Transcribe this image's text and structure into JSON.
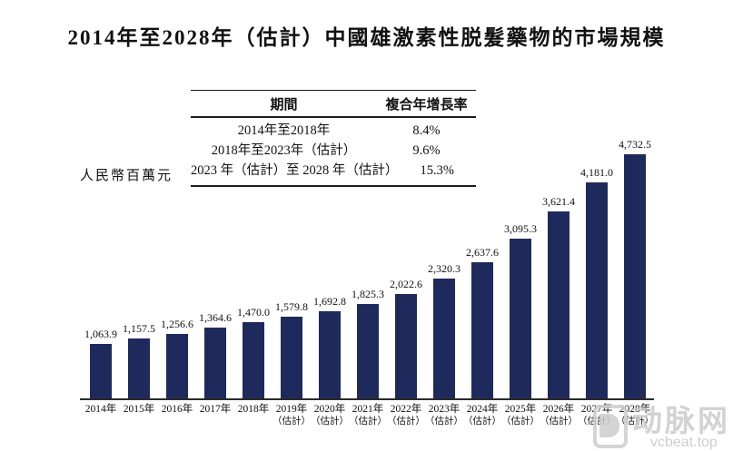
{
  "title": "2014年至2028年（估計）中國雄激素性脱髮藥物的市場規模",
  "unit_label": "人民幣百萬元",
  "cagr_table": {
    "headers": [
      "期間",
      "複合年增長率"
    ],
    "rows": [
      {
        "period": "2014年至2018年",
        "cagr": "8.4%"
      },
      {
        "period": "2018年至2023年（估計）",
        "cagr": "9.6%"
      },
      {
        "period": "2023 年（估計）至 2028 年（估計）",
        "cagr": "15.3%"
      }
    ]
  },
  "chart_data": {
    "type": "bar",
    "title": "2014年至2028年（估計）中國雄激素性脱髮藥物的市場規模",
    "xlabel": "",
    "ylabel": "人民幣百萬元",
    "ylim": [
      0,
      5000
    ],
    "grid": false,
    "legend": "none",
    "bar_color": "#1f2a5c",
    "categories": [
      "2014年",
      "2015年",
      "2016年",
      "2017年",
      "2018年",
      "2019年\n（估計）",
      "2020年\n（估計）",
      "2021年\n（估計）",
      "2022年\n（估計）",
      "2023年\n（估計）",
      "2024年\n（估計）",
      "2025年\n（估計）",
      "2026年\n（估計）",
      "2027年\n（估計）",
      "2028年\n（估計）"
    ],
    "values": [
      1063.9,
      1157.5,
      1256.6,
      1364.6,
      1470.0,
      1579.8,
      1692.8,
      1825.3,
      2022.6,
      2320.3,
      2637.6,
      3095.3,
      3621.4,
      4181.0,
      4732.5
    ],
    "value_labels": [
      "1,063.9",
      "1,157.5",
      "1,256.6",
      "1,364.6",
      "1,470.0",
      "1,579.8",
      "1,692.8",
      "1,825.3",
      "2,022.6",
      "2,320.3",
      "2,637.6",
      "3,095.3",
      "3,621.4",
      "4,181.0",
      "4,732.5"
    ]
  },
  "watermark": {
    "name": "动脉网",
    "url": "vcbeat.top",
    "color": "#cbcbcb"
  }
}
